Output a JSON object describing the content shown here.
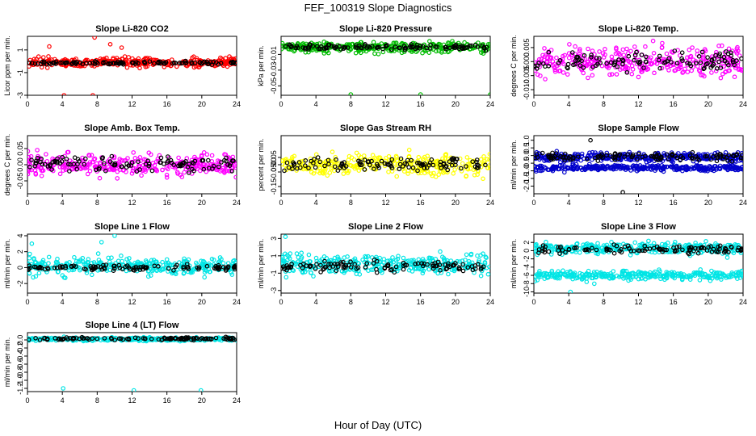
{
  "figure": {
    "title": "FEF_100319  Slope Diagnostics",
    "xlabel": "Hour of Day (UTC)"
  },
  "chart_data": [
    {
      "type": "scatter",
      "title": "Slope Li-820 CO2",
      "ylabel": "Licor ppm per min.",
      "xlim": [
        0,
        24
      ],
      "ylim": [
        -3,
        2.2
      ],
      "xticks": [
        "0",
        "4",
        "8",
        "12",
        "16",
        "20",
        "24"
      ],
      "yticks": [
        {
          "v": -3,
          "t": "-3"
        },
        {
          "v": -1,
          "t": "-1"
        },
        {
          "v": 1,
          "t": "1"
        }
      ],
      "series": [
        {
          "color": "#ff0000",
          "center": -0.1,
          "spread": 0.35,
          "values": [],
          "outliers": [
            {
              "x": 7.7,
              "y": 2.1
            },
            {
              "x": 4.2,
              "y": -3.0
            },
            {
              "x": 7.5,
              "y": -3.0
            },
            {
              "x": 2.5,
              "y": 1.3
            },
            {
              "x": 9.5,
              "y": 1.5
            },
            {
              "x": 10.8,
              "y": 1.2
            }
          ]
        },
        {
          "color": "#000000",
          "center": -0.15,
          "spread": 0.12,
          "values": [],
          "outliers": []
        }
      ]
    },
    {
      "type": "scatter",
      "title": "Slope Li-820 Pressure",
      "ylabel": "kPa per min.",
      "xlim": [
        0,
        24
      ],
      "ylim": [
        -0.062,
        0.013
      ],
      "xticks": [
        "0",
        "4",
        "8",
        "12",
        "16",
        "20",
        "24"
      ],
      "yticks": [
        {
          "v": -0.05,
          "t": "-0.05"
        },
        {
          "v": -0.03,
          "t": "-0.03"
        },
        {
          "v": -0.01,
          "t": "-0.01"
        }
      ],
      "series": [
        {
          "color": "#00bb00",
          "center": -0.001,
          "spread": 0.006,
          "values": [],
          "outliers": [
            {
              "x": 8.0,
              "y": -0.061
            },
            {
              "x": 16.0,
              "y": -0.061
            },
            {
              "x": 24.0,
              "y": -0.061
            }
          ]
        },
        {
          "color": "#000000",
          "center": -0.001,
          "spread": 0.003,
          "values": [],
          "outliers": []
        }
      ]
    },
    {
      "type": "scatter",
      "title": "Slope Li-820 Temp.",
      "ylabel": "degrees C per min.",
      "xlim": [
        0,
        24
      ],
      "ylim": [
        -0.012,
        0.009
      ],
      "xticks": [
        "0",
        "4",
        "8",
        "12",
        "16",
        "20",
        "24"
      ],
      "yticks": [
        {
          "v": -0.01,
          "t": "-0.010"
        },
        {
          "v": -0.005,
          "t": "-0.005"
        },
        {
          "v": 0,
          "t": "0.000"
        },
        {
          "v": 0.005,
          "t": "0.005"
        }
      ],
      "series": [
        {
          "color": "#ff00ff",
          "center": 0.0,
          "spread": 0.0045,
          "values": [],
          "outliers": []
        },
        {
          "color": "#000000",
          "center": 0.0,
          "spread": 0.003,
          "values": [],
          "outliers": []
        }
      ]
    },
    {
      "type": "scatter",
      "title": "Slope Amb. Box Temp.",
      "ylabel": "degrees C per min.",
      "xlim": [
        0,
        24
      ],
      "ylim": [
        -0.09,
        0.09
      ],
      "xticks": [
        "0",
        "4",
        "8",
        "12",
        "16",
        "20",
        "24"
      ],
      "yticks": [
        {
          "v": -0.05,
          "t": "-0.05"
        },
        {
          "v": 0,
          "t": "0.00"
        },
        {
          "v": 0.05,
          "t": "0.05"
        }
      ],
      "series": [
        {
          "color": "#ff00ff",
          "center": 0.0,
          "spread": 0.03,
          "values": [],
          "outliers": []
        },
        {
          "color": "#000000",
          "center": 0.0,
          "spread": 0.02,
          "values": [],
          "outliers": []
        }
      ]
    },
    {
      "type": "scatter",
      "title": "Slope Gas Stream RH",
      "ylabel": "percent per min.",
      "xlim": [
        0,
        24
      ],
      "ylim": [
        -0.2,
        0.2
      ],
      "xticks": [
        "0",
        "4",
        "8",
        "12",
        "16",
        "20",
        "24"
      ],
      "yticks": [
        {
          "v": -0.15,
          "t": "-0.15"
        },
        {
          "v": -0.05,
          "t": "-0.05"
        },
        {
          "v": 0,
          "t": "0.00"
        },
        {
          "v": 0.05,
          "t": "0.05"
        }
      ],
      "series": [
        {
          "color": "#ffff00",
          "center": 0.0,
          "spread": 0.06,
          "values": [],
          "outliers": []
        },
        {
          "color": "#000000",
          "center": 0.0,
          "spread": 0.04,
          "values": [],
          "outliers": []
        }
      ]
    },
    {
      "type": "scatter",
      "title": "Slope Sample Flow",
      "ylabel": "ml/min per min.",
      "xlim": [
        0,
        24
      ],
      "ylim": [
        -2.5,
        1.3
      ],
      "xticks": [
        "0",
        "4",
        "8",
        "12",
        "16",
        "20",
        "24"
      ],
      "yticks": [
        {
          "v": -2,
          "t": "-2.0"
        },
        {
          "v": -1.5,
          "t": "-1.5"
        },
        {
          "v": -1,
          "t": "-1.0"
        },
        {
          "v": -0.5,
          "t": "-0.5"
        },
        {
          "v": 0,
          "t": "0.0"
        },
        {
          "v": 0.5,
          "t": "0.5"
        },
        {
          "v": 1,
          "t": "1.0"
        }
      ],
      "series": [
        {
          "color": "#0000cc",
          "center": -0.1,
          "spread": 0.25,
          "values": [],
          "outliers": []
        },
        {
          "color": "#0000cc",
          "center": -0.8,
          "spread": 0.15,
          "values": [],
          "outliers": []
        },
        {
          "color": "#000000",
          "center": -0.05,
          "spread": 0.25,
          "values": [],
          "outliers": [
            {
              "x": 10.2,
              "y": -2.4
            },
            {
              "x": 6.5,
              "y": 1.0
            }
          ]
        }
      ]
    },
    {
      "type": "scatter",
      "title": "Slope Line 1 Flow",
      "ylabel": "ml/min per min.",
      "xlim": [
        0,
        24
      ],
      "ylim": [
        -3.2,
        4.2
      ],
      "xticks": [
        "0",
        "4",
        "8",
        "12",
        "16",
        "20",
        "24"
      ],
      "yticks": [
        {
          "v": -2,
          "t": "-2"
        },
        {
          "v": 0,
          "t": "0"
        },
        {
          "v": 2,
          "t": "2"
        },
        {
          "v": 4,
          "t": "4"
        }
      ],
      "series": [
        {
          "color": "#00e5e5",
          "center": 0.2,
          "spread": 0.9,
          "values": [],
          "outliers": [
            {
              "x": 10.0,
              "y": 4.0
            },
            {
              "x": 0.5,
              "y": 3.0
            },
            {
              "x": 8.5,
              "y": 3.2
            }
          ]
        },
        {
          "color": "#000000",
          "center": 0.0,
          "spread": 0.3,
          "values": [],
          "outliers": []
        }
      ]
    },
    {
      "type": "scatter",
      "title": "Slope Line 2 Flow",
      "ylabel": "ml/min per min.",
      "xlim": [
        0,
        24
      ],
      "ylim": [
        -3.3,
        3.5
      ],
      "xticks": [
        "0",
        "4",
        "8",
        "12",
        "16",
        "20",
        "24"
      ],
      "yticks": [
        {
          "v": -3,
          "t": "-3"
        },
        {
          "v": -1,
          "t": "-1"
        },
        {
          "v": 1,
          "t": "1"
        },
        {
          "v": 3,
          "t": "3"
        }
      ],
      "series": [
        {
          "color": "#00e5e5",
          "center": 0.0,
          "spread": 1.0,
          "values": [],
          "outliers": [
            {
              "x": 0.5,
              "y": 3.2
            }
          ]
        },
        {
          "color": "#000000",
          "center": -0.2,
          "spread": 0.5,
          "values": [],
          "outliers": []
        }
      ]
    },
    {
      "type": "scatter",
      "title": "Slope Line 3 Flow",
      "ylabel": "ml/min per min.",
      "xlim": [
        0,
        24
      ],
      "ylim": [
        -10.3,
        4.0
      ],
      "xticks": [
        "0",
        "4",
        "8",
        "12",
        "16",
        "20",
        "24"
      ],
      "yticks": [
        {
          "v": -10,
          "t": "-10"
        },
        {
          "v": -8,
          "t": "-8"
        },
        {
          "v": -6,
          "t": "-6"
        },
        {
          "v": -4,
          "t": "-4"
        },
        {
          "v": -2,
          "t": "-2"
        },
        {
          "v": 0,
          "t": "0"
        },
        {
          "v": 2,
          "t": "2"
        }
      ],
      "series": [
        {
          "color": "#00e5e5",
          "center": 0.5,
          "spread": 1.3,
          "values": [],
          "outliers": []
        },
        {
          "color": "#00e5e5",
          "center": -6.0,
          "spread": 1.0,
          "values": [],
          "outliers": [
            {
              "x": 4.2,
              "y": -10.0
            }
          ]
        },
        {
          "color": "#000000",
          "center": 0.3,
          "spread": 0.8,
          "values": [],
          "outliers": []
        }
      ]
    },
    {
      "type": "scatter",
      "title": "Slope Line 4 (LT) Flow",
      "ylabel": "ml/min per min.",
      "xlim": [
        0,
        24
      ],
      "ylim": [
        -1.28,
        0.18
      ],
      "xticks": [
        "0",
        "4",
        "8",
        "12",
        "16",
        "20",
        "24"
      ],
      "yticks": [
        {
          "v": -1.2,
          "t": "-1.2"
        },
        {
          "v": -1.0,
          "t": "-1.0"
        },
        {
          "v": -0.8,
          "t": "-0.8"
        },
        {
          "v": -0.6,
          "t": "-0.6"
        },
        {
          "v": -0.4,
          "t": "-0.4"
        },
        {
          "v": -0.2,
          "t": "-0.2"
        },
        {
          "v": 0,
          "t": "0.0"
        }
      ],
      "series": [
        {
          "color": "#00e5e5",
          "center": 0.02,
          "spread": 0.04,
          "values": [],
          "outliers": [
            {
              "x": 4.1,
              "y": -1.2
            },
            {
              "x": 12.2,
              "y": -1.25
            },
            {
              "x": 19.9,
              "y": -1.25
            }
          ]
        },
        {
          "color": "#000000",
          "center": 0.03,
          "spread": 0.03,
          "values": [],
          "outliers": []
        }
      ]
    }
  ]
}
